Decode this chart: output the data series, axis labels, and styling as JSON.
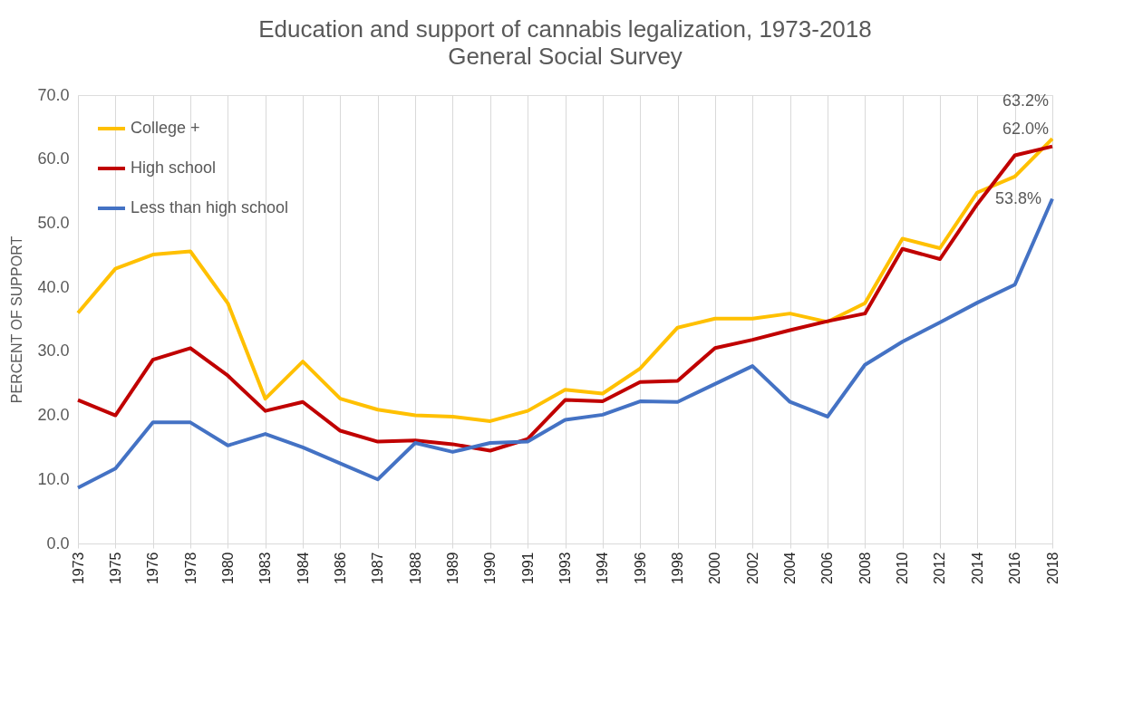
{
  "chart_data": {
    "type": "line",
    "title": "Education and support of cannabis legalization, 1973-2018",
    "subtitle": "General Social Survey",
    "ylabel": "PERCENT OF SUPPORT",
    "categories": [
      "1973",
      "1975",
      "1976",
      "1978",
      "1980",
      "1983",
      "1984",
      "1986",
      "1987",
      "1988",
      "1989",
      "1990",
      "1991",
      "1993",
      "1994",
      "1996",
      "1998",
      "2000",
      "2002",
      "2004",
      "2006",
      "2008",
      "2010",
      "2012",
      "2014",
      "2016",
      "2018"
    ],
    "series": [
      {
        "name": "College +",
        "color": "#ffc000",
        "values": [
          36.0,
          42.9,
          45.1,
          45.6,
          37.5,
          22.6,
          28.4,
          22.6,
          20.9,
          20.0,
          19.8,
          19.1,
          20.7,
          24.0,
          23.4,
          27.3,
          33.7,
          35.1,
          35.1,
          35.9,
          34.6,
          37.5,
          47.6,
          46.1,
          54.8,
          57.3,
          63.2
        ],
        "value_labels": [
          null,
          null,
          null,
          null,
          null,
          null,
          null,
          null,
          null,
          null,
          null,
          null,
          null,
          null,
          null,
          null,
          null,
          null,
          null,
          null,
          null,
          null,
          null,
          null,
          null,
          null,
          "63.2%"
        ]
      },
      {
        "name": "High school",
        "color": "#c00000",
        "values": [
          22.4,
          20.0,
          28.7,
          30.5,
          26.2,
          20.7,
          22.1,
          17.6,
          15.9,
          16.1,
          15.5,
          14.5,
          16.3,
          22.4,
          22.2,
          25.2,
          25.4,
          30.5,
          31.8,
          33.3,
          34.7,
          35.9,
          46.0,
          44.4,
          53.0,
          60.6,
          62.0
        ],
        "value_labels": [
          null,
          null,
          null,
          null,
          null,
          null,
          null,
          null,
          null,
          null,
          null,
          null,
          null,
          null,
          null,
          null,
          null,
          null,
          null,
          null,
          null,
          null,
          null,
          null,
          null,
          null,
          "62.0%"
        ]
      },
      {
        "name": "Less than high school",
        "color": "#4472c4",
        "values": [
          8.7,
          11.7,
          18.9,
          18.9,
          15.3,
          17.1,
          15.0,
          12.5,
          10.0,
          15.7,
          14.3,
          15.7,
          15.9,
          19.3,
          20.1,
          22.2,
          22.1,
          24.9,
          27.7,
          22.1,
          19.8,
          27.9,
          31.5,
          34.5,
          37.6,
          40.4,
          53.8
        ],
        "value_labels": [
          null,
          null,
          null,
          null,
          null,
          null,
          null,
          null,
          null,
          null,
          null,
          null,
          null,
          null,
          null,
          null,
          null,
          null,
          null,
          null,
          null,
          null,
          null,
          null,
          null,
          null,
          "53.8%"
        ]
      }
    ],
    "ylim": [
      0,
      70
    ],
    "yticks": [
      {
        "value": 0,
        "label": "0.0"
      },
      {
        "value": 10,
        "label": "10.0"
      },
      {
        "value": 20,
        "label": "20.0"
      },
      {
        "value": 30,
        "label": "30.0"
      },
      {
        "value": 40,
        "label": "40.0"
      },
      {
        "value": 50,
        "label": "50.0"
      },
      {
        "value": 60,
        "label": "60.0"
      },
      {
        "value": 70,
        "label": "70.0"
      }
    ],
    "grid": "x",
    "legend": "top left",
    "marker": "none",
    "line_style": "solid"
  }
}
